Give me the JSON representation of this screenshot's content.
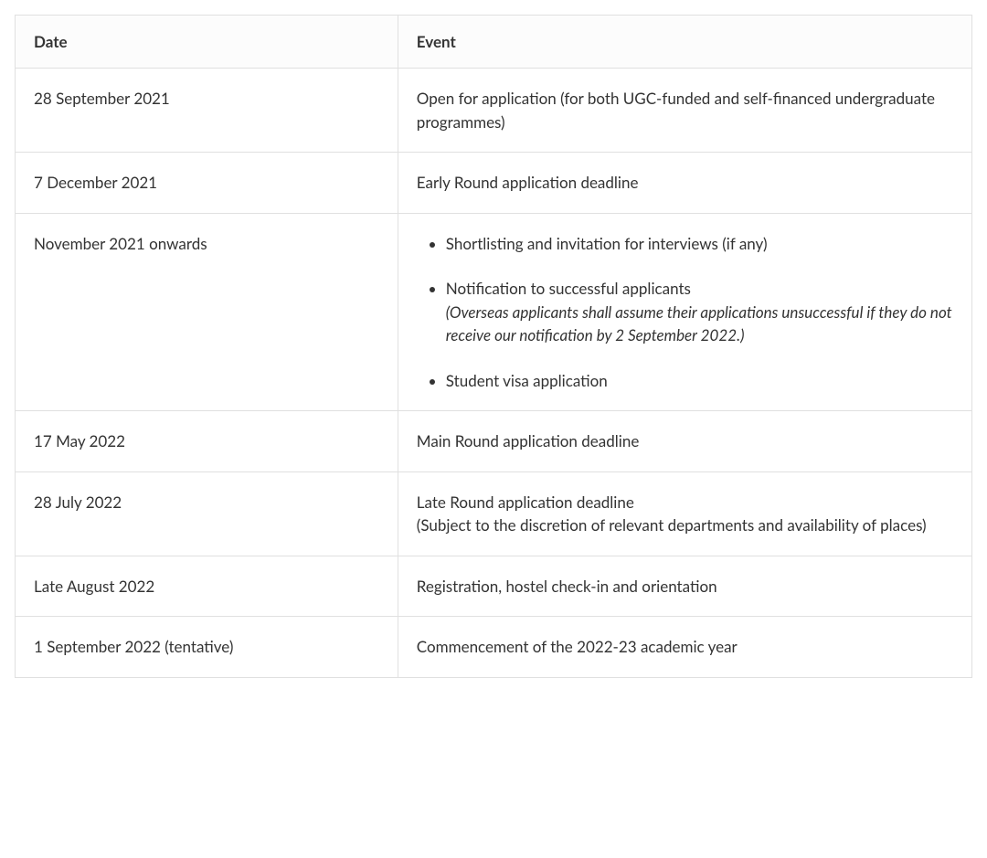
{
  "table": {
    "headers": {
      "date": "Date",
      "event": "Event"
    },
    "rows": [
      {
        "date": "28 September 2021",
        "event_type": "text",
        "event": "Open for application (for both UGC-funded and self-financed undergraduate programmes)"
      },
      {
        "date": "7 December 2021",
        "event_type": "text",
        "event": "Early Round application deadline"
      },
      {
        "date": "November 2021 onwards",
        "event_type": "list",
        "items": [
          {
            "text": "Shortlisting and invitation for interviews (if any)",
            "note": ""
          },
          {
            "text": "Notification to successful applicants",
            "note": "(Overseas applicants shall assume their applications unsuccessful if they do not receive our notification by 2 September 2022.)"
          },
          {
            "text": "Student visa application",
            "note": ""
          }
        ]
      },
      {
        "date": "17 May 2022",
        "event_type": "text",
        "event": "Main Round application deadline"
      },
      {
        "date": "28 July 2022",
        "event_type": "multiline",
        "lines": [
          "Late Round application deadline",
          "(Subject to the discretion of relevant departments and availability of places)"
        ]
      },
      {
        "date": "Late August 2022",
        "event_type": "text",
        "event": "Registration, hostel check-in and orientation"
      },
      {
        "date": "1 September 2022 (tentative)",
        "event_type": "text",
        "event": "Commencement of the 2022-23 academic year"
      }
    ],
    "styling": {
      "border_color": "#e0e0e0",
      "header_bg": "#fcfcfc",
      "text_color": "#333333",
      "font_size_header": 17,
      "font_size_cell": 17,
      "date_col_width": "40%",
      "event_col_width": "60%"
    }
  }
}
